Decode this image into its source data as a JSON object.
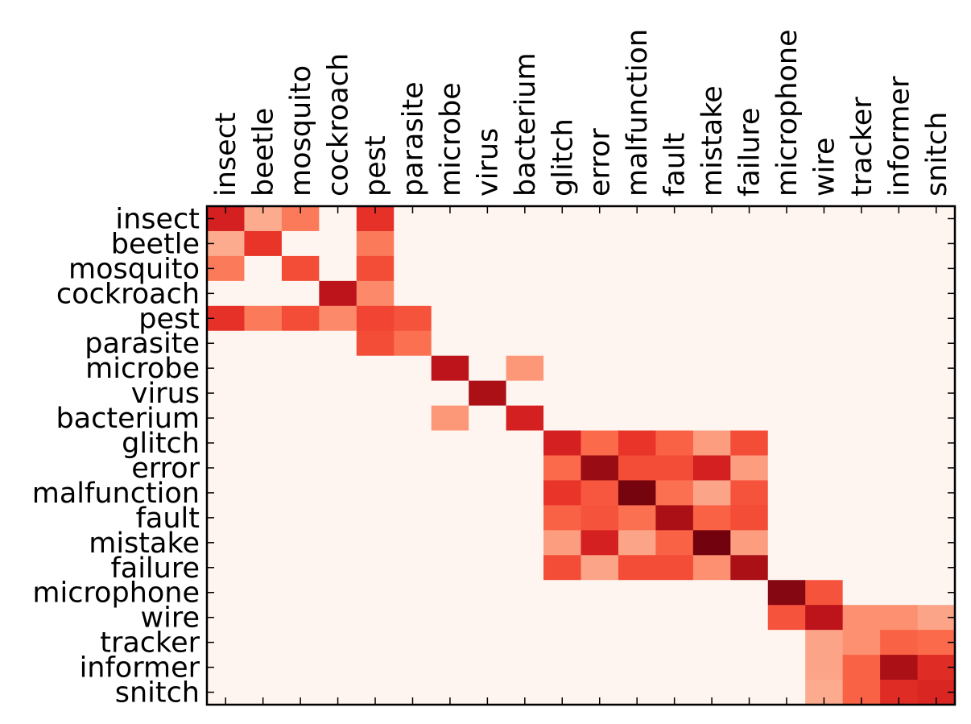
{
  "chart_data": {
    "type": "heatmap",
    "title": "",
    "xlabel": "",
    "ylabel": "",
    "colormap": "Reds",
    "value_range": [
      0,
      1
    ],
    "x_tick_position": "top",
    "grid": false,
    "legend": "none",
    "x_categories": [
      "insect",
      "beetle",
      "mosquito",
      "cockroach",
      "pest",
      "parasite",
      "microbe",
      "virus",
      "bacterium",
      "glitch",
      "error",
      "malfunction",
      "fault",
      "mistake",
      "failure",
      "microphone",
      "wire",
      "tracker",
      "informer",
      "snitch"
    ],
    "y_categories": [
      "insect",
      "beetle",
      "mosquito",
      "cockroach",
      "pest",
      "parasite",
      "microbe",
      "virus",
      "bacterium",
      "glitch",
      "error",
      "malfunction",
      "fault",
      "mistake",
      "failure",
      "microphone",
      "wire",
      "tracker",
      "informer",
      "snitch"
    ],
    "values": [
      [
        0.72,
        0.3,
        0.45,
        0,
        0.66,
        0,
        0,
        0,
        0,
        0,
        0,
        0,
        0,
        0,
        0,
        0,
        0,
        0,
        0,
        0
      ],
      [
        0.3,
        0.65,
        0,
        0,
        0.45,
        0,
        0,
        0,
        0,
        0,
        0,
        0,
        0,
        0,
        0,
        0,
        0,
        0,
        0,
        0
      ],
      [
        0.45,
        0,
        0.58,
        0,
        0.58,
        0,
        0,
        0,
        0,
        0,
        0,
        0,
        0,
        0,
        0,
        0,
        0,
        0,
        0,
        0
      ],
      [
        0,
        0,
        0,
        0.8,
        0.4,
        0,
        0,
        0,
        0,
        0,
        0,
        0,
        0,
        0,
        0,
        0,
        0,
        0,
        0,
        0
      ],
      [
        0.66,
        0.45,
        0.58,
        0.4,
        0.6,
        0.56,
        0,
        0,
        0,
        0,
        0,
        0,
        0,
        0,
        0,
        0,
        0,
        0,
        0,
        0
      ],
      [
        0,
        0,
        0,
        0,
        0.58,
        0.48,
        0,
        0,
        0,
        0,
        0,
        0,
        0,
        0,
        0,
        0,
        0,
        0,
        0,
        0
      ],
      [
        0,
        0,
        0,
        0,
        0,
        0,
        0.8,
        0,
        0.36,
        0,
        0,
        0,
        0,
        0,
        0,
        0,
        0,
        0,
        0,
        0
      ],
      [
        0,
        0,
        0,
        0,
        0,
        0,
        0,
        0.86,
        0,
        0,
        0,
        0,
        0,
        0,
        0,
        0,
        0,
        0,
        0,
        0
      ],
      [
        0,
        0,
        0,
        0,
        0,
        0,
        0.36,
        0,
        0.72,
        0,
        0,
        0,
        0,
        0,
        0,
        0,
        0,
        0,
        0,
        0
      ],
      [
        0,
        0,
        0,
        0,
        0,
        0,
        0,
        0,
        0,
        0.72,
        0.5,
        0.65,
        0.52,
        0.34,
        0.58,
        0,
        0,
        0,
        0,
        0
      ],
      [
        0,
        0,
        0,
        0,
        0,
        0,
        0,
        0,
        0,
        0.5,
        0.9,
        0.58,
        0.58,
        0.72,
        0.34,
        0,
        0,
        0,
        0,
        0
      ],
      [
        0,
        0,
        0,
        0,
        0,
        0,
        0,
        0,
        0,
        0.65,
        0.55,
        0.97,
        0.48,
        0.32,
        0.56,
        0,
        0,
        0,
        0,
        0
      ],
      [
        0,
        0,
        0,
        0,
        0,
        0,
        0,
        0,
        0,
        0.52,
        0.56,
        0.48,
        0.86,
        0.52,
        0.58,
        0,
        0,
        0,
        0,
        0
      ],
      [
        0,
        0,
        0,
        0,
        0,
        0,
        0,
        0,
        0,
        0.34,
        0.72,
        0.32,
        0.52,
        0.98,
        0.34,
        0,
        0,
        0,
        0,
        0
      ],
      [
        0,
        0,
        0,
        0,
        0,
        0,
        0,
        0,
        0,
        0.58,
        0.32,
        0.58,
        0.58,
        0.38,
        0.86,
        0,
        0,
        0,
        0,
        0
      ],
      [
        0,
        0,
        0,
        0,
        0,
        0,
        0,
        0,
        0,
        0,
        0,
        0,
        0,
        0,
        0,
        0.94,
        0.56,
        0,
        0,
        0
      ],
      [
        0,
        0,
        0,
        0,
        0,
        0,
        0,
        0,
        0,
        0,
        0,
        0,
        0,
        0,
        0,
        0.56,
        0.8,
        0.38,
        0.38,
        0.32
      ],
      [
        0,
        0,
        0,
        0,
        0,
        0,
        0,
        0,
        0,
        0,
        0,
        0,
        0,
        0,
        0,
        0,
        0.32,
        0.38,
        0.52,
        0.5
      ],
      [
        0,
        0,
        0,
        0,
        0,
        0,
        0,
        0,
        0,
        0,
        0,
        0,
        0,
        0,
        0,
        0,
        0.32,
        0.52,
        0.86,
        0.68
      ],
      [
        0,
        0,
        0,
        0,
        0,
        0,
        0,
        0,
        0,
        0,
        0,
        0,
        0,
        0,
        0,
        0,
        0.3,
        0.52,
        0.68,
        0.7
      ]
    ]
  }
}
